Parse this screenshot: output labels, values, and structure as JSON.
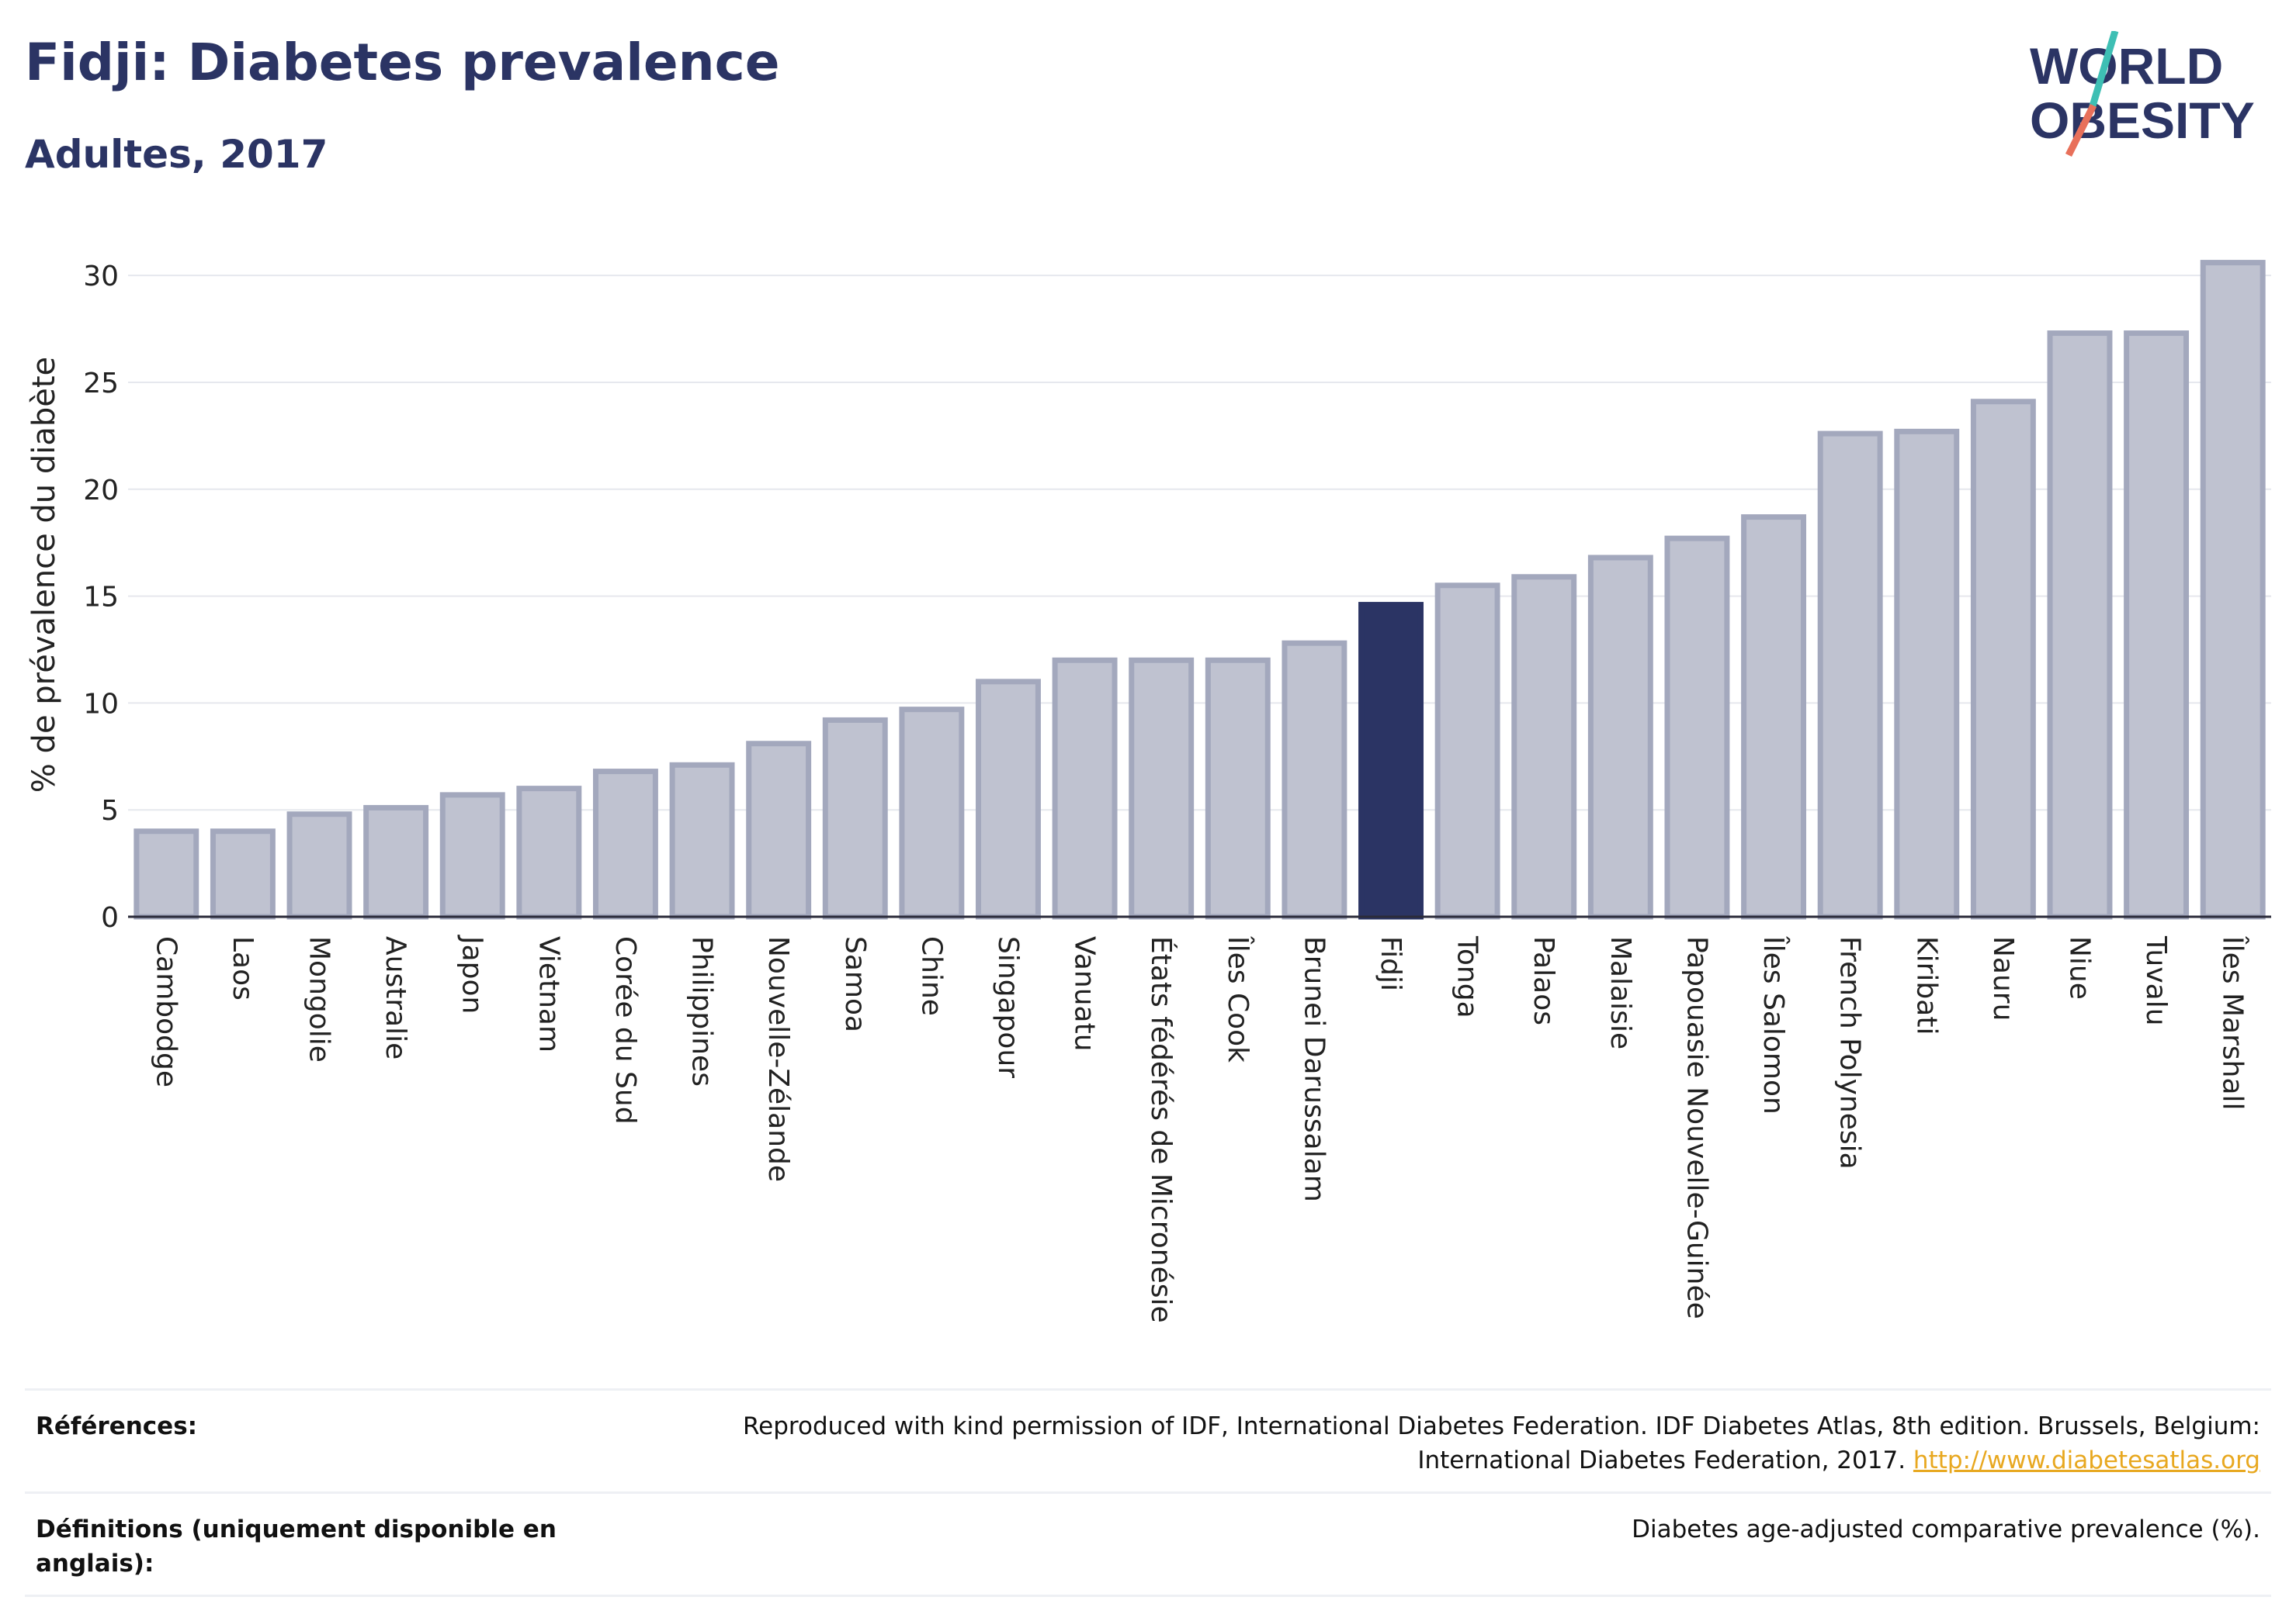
{
  "header": {
    "title": "Fidji: Diabetes prevalence",
    "subtitle": "Adultes, 2017"
  },
  "logo": {
    "line1": "WORLD",
    "line2": "OBESITY",
    "colors": {
      "text": "#2b3464",
      "slash_teal": "#3ebfb4",
      "slash_coral": "#e8705a"
    }
  },
  "colors": {
    "bar_fill": "#bfc2d0",
    "bar_stroke": "#a3a8bd",
    "highlight_fill": "#2b3464",
    "grid": "#e6e8ee",
    "axis": "#2b2b3a"
  },
  "chart_data": {
    "type": "bar",
    "title": "Fidji: Diabetes prevalence",
    "subtitle": "Adultes, 2017",
    "ylabel": "% de prévalence du diabète",
    "xlabel": "",
    "ylim": [
      0,
      32
    ],
    "yticks": [
      0,
      5,
      10,
      15,
      20,
      25,
      30
    ],
    "grid": true,
    "highlight": "Fidji",
    "categories": [
      "Cambodge",
      "Laos",
      "Mongolie",
      "Australie",
      "Japon",
      "Vietnam",
      "Corée du Sud",
      "Philippines",
      "Nouvelle-Zélande",
      "Samoa",
      "Chine",
      "Singapour",
      "Vanuatu",
      "États fédérés de Micronésie",
      "Îles Cook",
      "Brunei Darussalam",
      "Fidji",
      "Tonga",
      "Palaos",
      "Malaisie",
      "Papouasie Nouvelle-Guinée",
      "Îles Salomon",
      "French Polynesia",
      "Kiribati",
      "Nauru",
      "Niue",
      "Tuvalu",
      "Îles Marshall"
    ],
    "values": [
      4.0,
      4.0,
      4.8,
      5.1,
      5.7,
      6.0,
      6.8,
      7.1,
      8.1,
      9.2,
      9.7,
      11.0,
      12.0,
      12.0,
      12.0,
      12.8,
      14.6,
      15.5,
      15.9,
      16.8,
      17.7,
      18.7,
      22.6,
      22.7,
      24.1,
      27.3,
      27.3,
      30.6
    ]
  },
  "references": {
    "refs_label": "Références:",
    "refs_text": "Reproduced with kind permission of IDF, International Diabetes Federation. IDF Diabetes Atlas, 8th edition. Brussels, Belgium: International Diabetes Federation, 2017.",
    "refs_link": "http://www.diabetesatlas.org",
    "defs_label": "Définitions (uniquement disponible en anglais):",
    "defs_text": "Diabetes age-adjusted comparative prevalence (%)."
  }
}
